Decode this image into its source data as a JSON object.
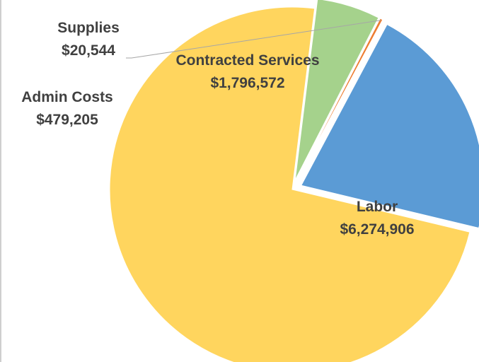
{
  "chart_data": {
    "type": "pie",
    "exploded": true,
    "slices": [
      {
        "label": "Labor",
        "value_text": "$6,274,906",
        "value": 6274906,
        "color": "#FFD55E"
      },
      {
        "label": "Admin Costs",
        "value_text": "$479,205",
        "value": 479205,
        "color": "#A5D28C"
      },
      {
        "label": "Supplies",
        "value_text": "$20,544",
        "value": 20544,
        "color": "#ED7D31"
      },
      {
        "label": "Contracted Services",
        "value_text": "$1,796,572",
        "value": 1796572,
        "color": "#5B9BD5"
      }
    ],
    "label_color": "#404040",
    "leader_line_color": "#a6a6a6"
  }
}
